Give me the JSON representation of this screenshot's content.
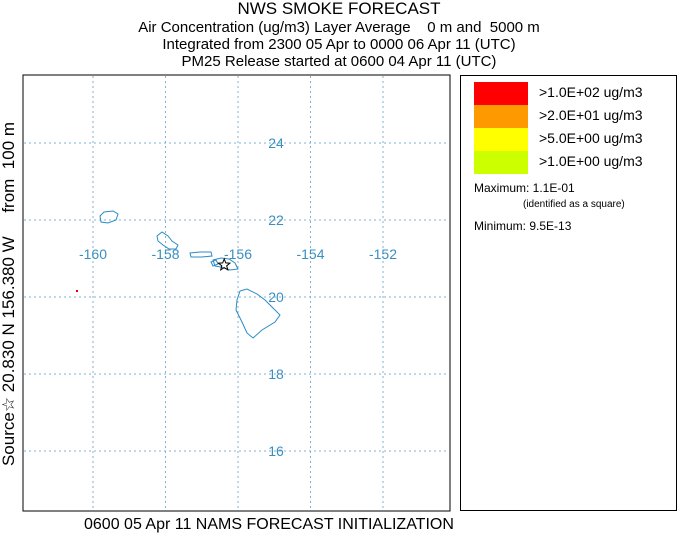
{
  "header": {
    "title": "NWS SMOKE FORECAST",
    "line2": "Air Concentration (ug/m3) Layer Average    0 m and  5000 m",
    "line3": "Integrated from 2300 05 Apr to 0000 06 Apr 11 (UTC)",
    "line4": "PM25 Release started at 0600 04 Apr 11 (UTC)"
  },
  "side_label": "Source☆ 20.830 N 156.380 W     from  100 m",
  "footer": "0600 05 Apr 11 NAMS FORECAST INITIALIZATION",
  "map": {
    "longitude_labels": [
      "-160",
      "-158",
      "-156",
      "-154",
      "-152"
    ],
    "latitude_labels": [
      "24",
      "22",
      "20",
      "18",
      "16"
    ],
    "grid_color": "#7fb3d5",
    "label_color": "#3a8fc2",
    "coast_color": "#2b8cc4",
    "source_marker": {
      "symbol": "star",
      "lon": -156.38,
      "lat": 20.83
    },
    "max_point": {
      "symbol": "square",
      "color": "#e60000"
    }
  },
  "legend": {
    "entries": [
      {
        "label": ">1.0E+02 ug/m3",
        "color": "#ff0000"
      },
      {
        "label": ">2.0E+01 ug/m3",
        "color": "#ff9900"
      },
      {
        "label": ">5.0E+00 ug/m3",
        "color": "#ffff00"
      },
      {
        "label": ">1.0E+00 ug/m3",
        "color": "#ccff00"
      }
    ],
    "maximum": "Maximum: 1.1E-01",
    "maximum_note": "(identified as a square)",
    "minimum": "Minimum: 9.5E-13"
  }
}
